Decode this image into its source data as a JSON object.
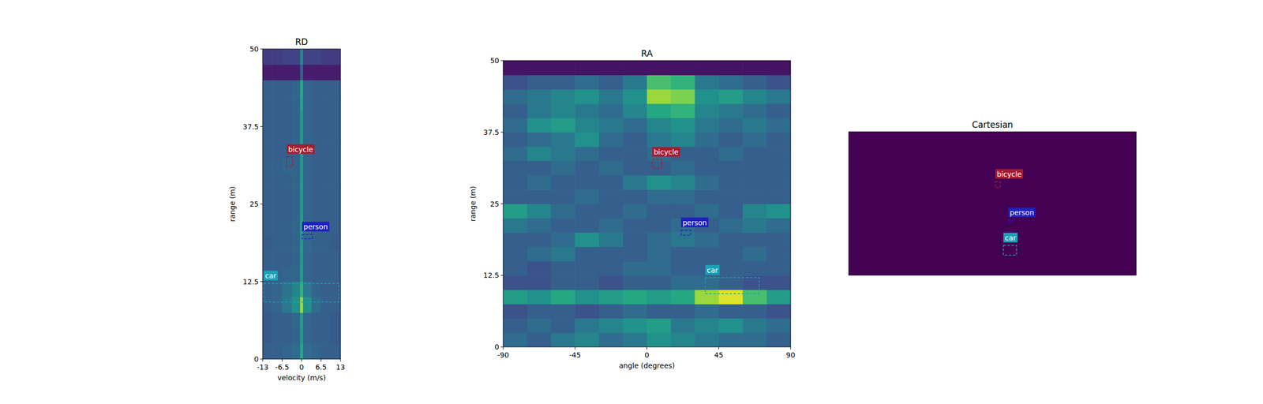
{
  "chart_data": [
    {
      "type": "heatmap",
      "title": "RD",
      "xlabel": "velocity (m/s)",
      "ylabel": "range (m)",
      "xlim": [
        -13,
        13
      ],
      "ylim": [
        0,
        50
      ],
      "xticks": [
        -13,
        -6.5,
        0,
        6.5,
        13
      ],
      "yticks": [
        0,
        12.5,
        25,
        37.5,
        50
      ],
      "x_edges": [
        -13,
        -9.75,
        -6.5,
        -3.25,
        -0.5,
        0.5,
        3.25,
        6.5,
        9.75,
        13
      ],
      "y_edges": [
        0,
        2.5,
        5,
        7.5,
        10,
        12.5,
        15,
        17.5,
        20,
        22.5,
        25,
        27.5,
        30,
        32.5,
        35,
        37.5,
        40,
        42.5,
        45,
        47.5,
        50
      ],
      "color_range": [
        0,
        1
      ],
      "cells": [
        [
          0.3,
          0.3,
          0.32,
          0.35,
          0.6,
          0.35,
          0.32,
          0.3,
          0.3
        ],
        [
          0.28,
          0.3,
          0.3,
          0.32,
          0.55,
          0.32,
          0.3,
          0.3,
          0.28
        ],
        [
          0.28,
          0.3,
          0.3,
          0.33,
          0.55,
          0.33,
          0.3,
          0.3,
          0.28
        ],
        [
          0.3,
          0.32,
          0.4,
          0.5,
          0.85,
          0.5,
          0.35,
          0.3,
          0.3
        ],
        [
          0.3,
          0.32,
          0.38,
          0.45,
          0.65,
          0.4,
          0.32,
          0.3,
          0.3
        ],
        [
          0.3,
          0.3,
          0.32,
          0.33,
          0.55,
          0.32,
          0.3,
          0.3,
          0.3
        ],
        [
          0.3,
          0.3,
          0.3,
          0.32,
          0.55,
          0.32,
          0.3,
          0.3,
          0.3
        ],
        [
          0.29,
          0.3,
          0.31,
          0.32,
          0.55,
          0.34,
          0.31,
          0.3,
          0.29
        ],
        [
          0.3,
          0.3,
          0.31,
          0.33,
          0.58,
          0.36,
          0.31,
          0.3,
          0.3
        ],
        [
          0.3,
          0.3,
          0.3,
          0.32,
          0.55,
          0.32,
          0.3,
          0.3,
          0.3
        ],
        [
          0.3,
          0.3,
          0.3,
          0.32,
          0.55,
          0.32,
          0.3,
          0.3,
          0.3
        ],
        [
          0.3,
          0.3,
          0.31,
          0.32,
          0.55,
          0.32,
          0.3,
          0.3,
          0.3
        ],
        [
          0.3,
          0.31,
          0.33,
          0.32,
          0.55,
          0.32,
          0.3,
          0.3,
          0.3
        ],
        [
          0.3,
          0.3,
          0.3,
          0.32,
          0.55,
          0.32,
          0.3,
          0.3,
          0.3
        ],
        [
          0.3,
          0.3,
          0.3,
          0.32,
          0.55,
          0.32,
          0.3,
          0.3,
          0.3
        ],
        [
          0.3,
          0.3,
          0.3,
          0.32,
          0.55,
          0.32,
          0.3,
          0.3,
          0.3
        ],
        [
          0.3,
          0.3,
          0.3,
          0.32,
          0.58,
          0.32,
          0.3,
          0.3,
          0.3
        ],
        [
          0.3,
          0.3,
          0.3,
          0.32,
          0.6,
          0.32,
          0.3,
          0.3,
          0.3
        ],
        [
          0.08,
          0.08,
          0.08,
          0.08,
          0.3,
          0.08,
          0.08,
          0.08,
          0.08
        ],
        [
          0.18,
          0.18,
          0.2,
          0.2,
          0.45,
          0.2,
          0.2,
          0.18,
          0.18
        ]
      ],
      "boxes": [
        {
          "label": "bicycle",
          "color": "#a51c30",
          "x": [
            -4.96,
            -3.08
          ],
          "y": [
            31.0,
            32.6
          ]
        },
        {
          "label": "person",
          "color": "#1f1fbf",
          "x": [
            0.13,
            3.6
          ],
          "y": [
            19.4,
            20.1
          ]
        },
        {
          "label": "car",
          "color": "#1aa3b8",
          "x": [
            -12.7,
            12.5
          ],
          "y": [
            9.2,
            12.2
          ]
        }
      ]
    },
    {
      "type": "heatmap",
      "title": "RA",
      "xlabel": "angle (degrees)",
      "ylabel": "range (m)",
      "xlim": [
        -90,
        90
      ],
      "ylim": [
        0,
        50
      ],
      "xticks": [
        -90,
        -45,
        0,
        45,
        90
      ],
      "yticks": [
        0,
        12.5,
        25,
        37.5,
        50
      ],
      "x_edges": [
        -90,
        -75,
        -60,
        -45,
        -30,
        -15,
        0,
        15,
        30,
        45,
        60,
        75,
        90
      ],
      "y_edges": [
        0,
        2.5,
        5,
        7.5,
        10,
        12.5,
        15,
        17.5,
        20,
        22.5,
        25,
        27.5,
        30,
        32.5,
        35,
        37.5,
        40,
        42.5,
        45,
        47.5,
        50
      ],
      "color_range": [
        0,
        1
      ],
      "cells": [
        [
          0.35,
          0.3,
          0.4,
          0.45,
          0.35,
          0.4,
          0.5,
          0.45,
          0.4,
          0.35,
          0.35,
          0.3
        ],
        [
          0.3,
          0.35,
          0.3,
          0.4,
          0.45,
          0.5,
          0.55,
          0.4,
          0.45,
          0.5,
          0.4,
          0.35
        ],
        [
          0.25,
          0.3,
          0.3,
          0.25,
          0.3,
          0.35,
          0.3,
          0.3,
          0.35,
          0.3,
          0.3,
          0.25
        ],
        [
          0.55,
          0.5,
          0.6,
          0.5,
          0.55,
          0.6,
          0.55,
          0.6,
          0.85,
          0.95,
          0.7,
          0.55
        ],
        [
          0.25,
          0.25,
          0.3,
          0.3,
          0.25,
          0.3,
          0.3,
          0.35,
          0.35,
          0.3,
          0.25,
          0.25
        ],
        [
          0.3,
          0.25,
          0.3,
          0.3,
          0.3,
          0.35,
          0.35,
          0.3,
          0.3,
          0.3,
          0.3,
          0.3
        ],
        [
          0.3,
          0.35,
          0.4,
          0.3,
          0.3,
          0.3,
          0.35,
          0.3,
          0.3,
          0.3,
          0.35,
          0.3
        ],
        [
          0.3,
          0.3,
          0.35,
          0.5,
          0.4,
          0.3,
          0.35,
          0.4,
          0.35,
          0.3,
          0.3,
          0.3
        ],
        [
          0.4,
          0.35,
          0.3,
          0.3,
          0.35,
          0.3,
          0.3,
          0.35,
          0.3,
          0.35,
          0.4,
          0.35
        ],
        [
          0.55,
          0.45,
          0.35,
          0.3,
          0.3,
          0.35,
          0.3,
          0.3,
          0.35,
          0.3,
          0.45,
          0.5
        ],
        [
          0.3,
          0.3,
          0.3,
          0.35,
          0.3,
          0.3,
          0.35,
          0.35,
          0.3,
          0.3,
          0.3,
          0.3
        ],
        [
          0.3,
          0.35,
          0.3,
          0.3,
          0.3,
          0.4,
          0.5,
          0.45,
          0.35,
          0.3,
          0.3,
          0.3
        ],
        [
          0.3,
          0.3,
          0.35,
          0.3,
          0.35,
          0.3,
          0.3,
          0.35,
          0.3,
          0.3,
          0.3,
          0.3
        ],
        [
          0.35,
          0.45,
          0.4,
          0.35,
          0.3,
          0.3,
          0.35,
          0.3,
          0.3,
          0.35,
          0.3,
          0.3
        ],
        [
          0.3,
          0.35,
          0.4,
          0.5,
          0.35,
          0.3,
          0.4,
          0.45,
          0.35,
          0.3,
          0.35,
          0.3
        ],
        [
          0.35,
          0.5,
          0.55,
          0.45,
          0.4,
          0.35,
          0.45,
          0.5,
          0.4,
          0.35,
          0.4,
          0.35
        ],
        [
          0.3,
          0.4,
          0.45,
          0.4,
          0.35,
          0.45,
          0.6,
          0.65,
          0.45,
          0.4,
          0.35,
          0.3
        ],
        [
          0.35,
          0.4,
          0.45,
          0.5,
          0.4,
          0.5,
          0.85,
          0.8,
          0.5,
          0.55,
          0.45,
          0.4
        ],
        [
          0.25,
          0.3,
          0.3,
          0.35,
          0.3,
          0.4,
          0.7,
          0.65,
          0.4,
          0.35,
          0.3,
          0.25
        ],
        [
          0.05,
          0.05,
          0.05,
          0.05,
          0.05,
          0.05,
          0.05,
          0.05,
          0.05,
          0.05,
          0.05,
          0.05
        ]
      ],
      "boxes": [
        {
          "label": "bicycle",
          "color": "#a51c30",
          "x": [
            3.3,
            9.3
          ],
          "y": [
            31.2,
            32.7
          ]
        },
        {
          "label": "person",
          "color": "#1f1fbf",
          "x": [
            21.4,
            27.5
          ],
          "y": [
            19.5,
            20.4
          ]
        },
        {
          "label": "car",
          "color": "#1aa3b8",
          "x": [
            36.6,
            70.3
          ],
          "y": [
            9.3,
            12.1
          ]
        }
      ]
    },
    {
      "type": "heatmap",
      "title": "Cartesian",
      "tick_labels": false,
      "xlim": [
        -50,
        50
      ],
      "ylim": [
        0,
        50
      ],
      "x_edges": [
        -50,
        50
      ],
      "y_edges": [
        0,
        50
      ],
      "color_range": [
        0,
        1
      ],
      "cells": [
        [
          0
        ]
      ],
      "boxes": [
        {
          "label": "bicycle",
          "color": "#a51c30",
          "x": [
            1.0,
            2.7
          ],
          "y": [
            30.6,
            32.6
          ]
        },
        {
          "label": "person",
          "color": "#1f1fbf",
          "x": [
            5.5,
            7.0
          ],
          "y": [
            18.5,
            19.2
          ]
        },
        {
          "label": "car",
          "color": "#1aa3b8",
          "x": [
            3.8,
            8.4
          ],
          "y": [
            7.0,
            10.4
          ]
        }
      ]
    }
  ]
}
